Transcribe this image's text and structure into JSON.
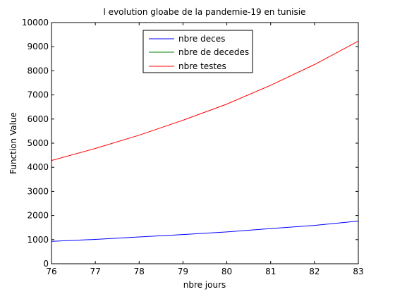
{
  "chart_data": {
    "type": "line",
    "title": "l evolution gloabe de la pandemie-19 en tunisie",
    "xlabel": "nbre jours",
    "ylabel": "Function Value",
    "xlim": [
      76,
      83
    ],
    "ylim": [
      0,
      10000
    ],
    "xticks": [
      76,
      77,
      78,
      79,
      80,
      81,
      82,
      83
    ],
    "yticks": [
      0,
      1000,
      2000,
      3000,
      4000,
      5000,
      6000,
      7000,
      8000,
      9000,
      10000
    ],
    "grid": false,
    "legend_position": "top-center",
    "x": [
      76,
      77,
      78,
      79,
      80,
      81,
      82,
      83
    ],
    "series": [
      {
        "name": "nbre deces",
        "color": "#0000ff",
        "values": [
          930,
          1010,
          1110,
          1210,
          1320,
          1460,
          1590,
          1770
        ]
      },
      {
        "name": "nbre de decedes",
        "color": "#008000",
        "values": [
          0,
          0,
          0,
          0,
          0,
          0,
          0,
          0
        ]
      },
      {
        "name": "nbre testes",
        "color": "#ff0000",
        "values": [
          4280,
          4780,
          5330,
          5950,
          6620,
          7400,
          8260,
          9230
        ]
      }
    ]
  }
}
